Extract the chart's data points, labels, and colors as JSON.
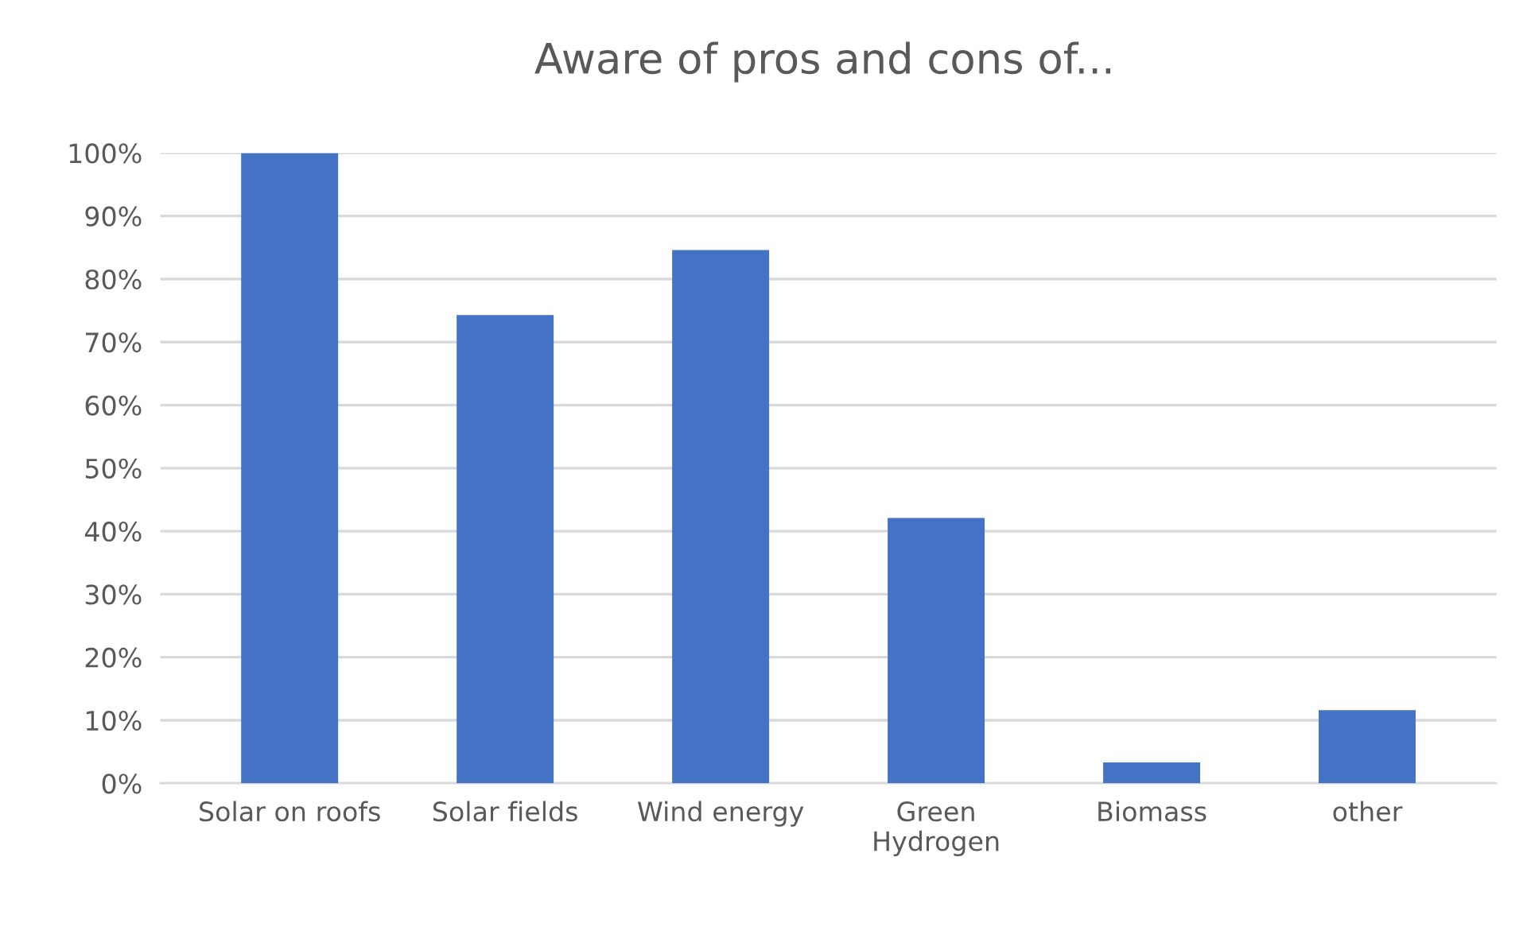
{
  "chart_data": {
    "type": "bar",
    "title": "Aware of pros and cons of...",
    "categories": [
      "Solar on roofs",
      "Solar fields",
      "Wind energy",
      "Green\nHydrogen",
      "Biomass",
      "other"
    ],
    "values": [
      100,
      74.3,
      84.6,
      42.1,
      3.3,
      11.6
    ],
    "color": "#4472c4",
    "ylim": [
      0,
      100
    ],
    "yticks": [
      {
        "value": 0,
        "label": "0%"
      },
      {
        "value": 10,
        "label": "10%"
      },
      {
        "value": 20,
        "label": "20%"
      },
      {
        "value": 30,
        "label": "30%"
      },
      {
        "value": 40,
        "label": "40%"
      },
      {
        "value": 50,
        "label": "50%"
      },
      {
        "value": 60,
        "label": "60%"
      },
      {
        "value": 70,
        "label": "70%"
      },
      {
        "value": 80,
        "label": "80%"
      },
      {
        "value": 90,
        "label": "90%"
      },
      {
        "value": 100,
        "label": "100%"
      }
    ],
    "grid": "y"
  }
}
